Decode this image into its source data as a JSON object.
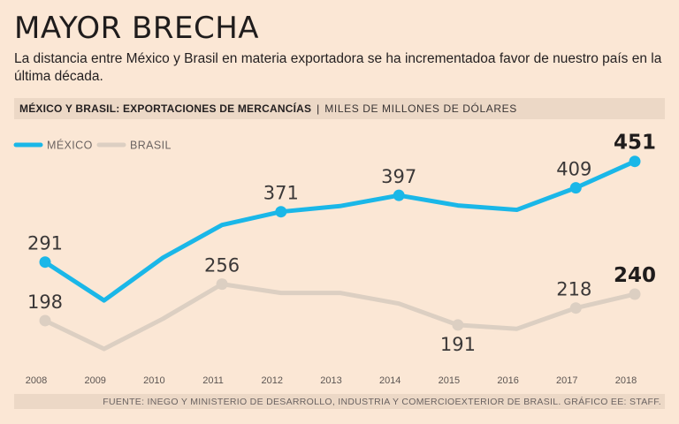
{
  "title": "MAYOR BRECHA",
  "subtitle": "La distancia entre México y Brasil en materia exportadora se ha incrementadoa favor de nuestro país en la última década.",
  "band": {
    "heading": "MÉXICO Y BRASIL: EXPORTACIONES DE MERCANCÍAS",
    "separator": "|",
    "units": "MILES DE MILLONES DE DÓLARES"
  },
  "footer": "FUENTE: INEGO Y MINISTERIO DE DESARROLLO, INDUSTRIA Y COMERCIOEXTERIOR DE BRASIL. GRÁFICO EE: STAFF.",
  "colors": {
    "background": "#fbe7d5",
    "band": "#ecd8c6",
    "mexico": "#1ab7e8",
    "brasil": "#dccfc2"
  },
  "chart_data": {
    "type": "line",
    "x": [
      "2008",
      "2009",
      "2010",
      "2011",
      "2012",
      "2013",
      "2014",
      "2015",
      "2016",
      "2017",
      "2018"
    ],
    "series": [
      {
        "name": "MÉXICO",
        "values": [
          291,
          230,
          298,
          350,
          371,
          380,
          397,
          381,
          374,
          409,
          451
        ],
        "labels": [
          {
            "index": 0,
            "text": "291"
          },
          {
            "index": 4,
            "text": "371"
          },
          {
            "index": 6,
            "text": "397"
          },
          {
            "index": 9,
            "text": "409"
          },
          {
            "index": 10,
            "text": "451",
            "bold": true
          }
        ]
      },
      {
        "name": "BRASIL",
        "values": [
          198,
          153,
          201,
          256,
          242,
          242,
          225,
          191,
          185,
          218,
          240
        ],
        "labels": [
          {
            "index": 0,
            "text": "198"
          },
          {
            "index": 3,
            "text": "256"
          },
          {
            "index": 7,
            "text": "191"
          },
          {
            "index": 9,
            "text": "218"
          },
          {
            "index": 10,
            "text": "240",
            "bold": true
          }
        ]
      }
    ],
    "legend_position": "top-left",
    "grid": false
  }
}
